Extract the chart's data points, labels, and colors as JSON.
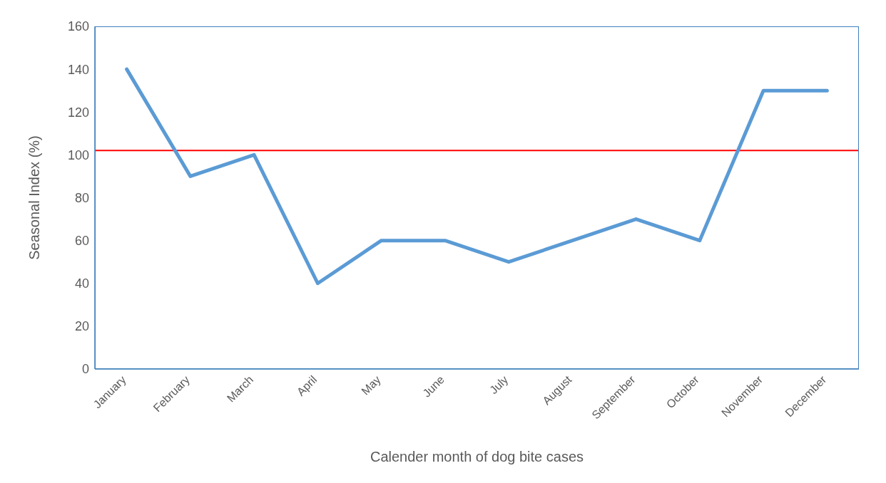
{
  "chart_data": {
    "type": "line",
    "xlabel": "Calender month of dog bite cases",
    "ylabel": "Seasonal Index (%)",
    "categories": [
      "January",
      "February",
      "March",
      "April",
      "May",
      "June",
      "July",
      "August",
      "September",
      "October",
      "November",
      "December"
    ],
    "series": [
      {
        "color": "#5b9bd5",
        "values": [
          140,
          90,
          100,
          40,
          60,
          60,
          50,
          60,
          70,
          60,
          130,
          130
        ]
      }
    ],
    "ylim": [
      0,
      160
    ],
    "yticks": [
      0,
      20,
      40,
      60,
      80,
      100,
      120,
      140,
      160
    ],
    "marker": "none",
    "line_style": "solid",
    "ref_lines": [
      {
        "axis": "y",
        "value": 102,
        "color": "#ff0000"
      }
    ]
  }
}
